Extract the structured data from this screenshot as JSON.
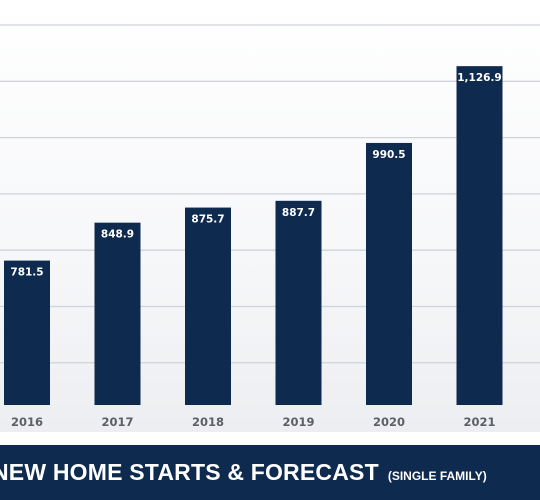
{
  "colors": {
    "bar": "#0e2a4f",
    "title_band": "#0e2a4f",
    "grid": "#cfd3d9",
    "tick_text": "#5b5f66",
    "label_text": "#ffffff"
  },
  "chart_data": {
    "type": "bar",
    "title": "NEW HOME STARTS & FORECAST",
    "subtitle": "(SINGLE FAMILY)",
    "categories": [
      "2016",
      "2017",
      "2018",
      "2019",
      "2020",
      "2021"
    ],
    "values": [
      781.5,
      848.9,
      875.7,
      887.7,
      990.5,
      1126.9
    ],
    "value_labels": [
      "781.5",
      "848.9",
      "875.7",
      "887.7",
      "990.5",
      "1,126.9"
    ],
    "xlabel": "",
    "ylabel": "",
    "ylim": [
      525,
      1200
    ],
    "gridlines": [
      600,
      700,
      800,
      900,
      1000,
      1100,
      1200
    ],
    "grid": true,
    "legend": "none"
  }
}
